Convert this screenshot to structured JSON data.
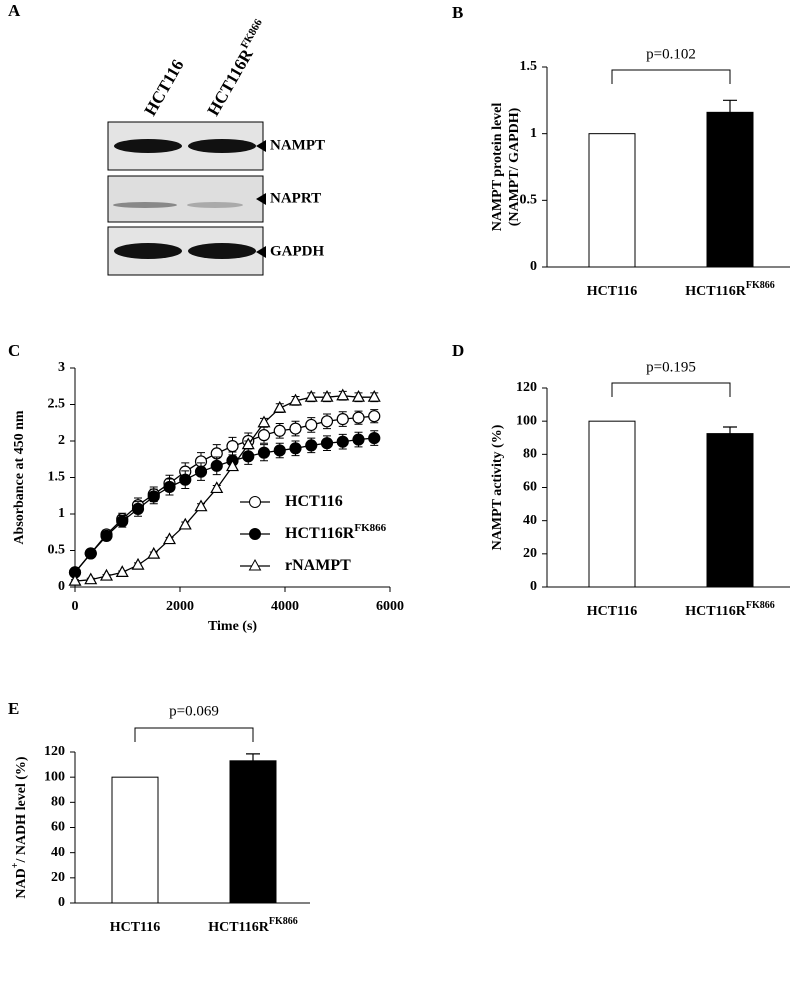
{
  "blot": {
    "panel": "A",
    "lanes": [
      {
        "label": "HCT116"
      },
      {
        "label": "HCT116R",
        "superscript": "FK866"
      }
    ],
    "proteins": [
      "NAMPT",
      "NAPRT",
      "GAPDH"
    ]
  },
  "chart_data": [
    {
      "type": "bar",
      "panel": "B",
      "ylabel": [
        [
          {
            "text": "NAMPT protein level"
          }
        ],
        [
          {
            "text": "(NAMPT/ GAPDH)"
          }
        ]
      ],
      "categories": [
        {
          "label": "HCT116"
        },
        {
          "label": "HCT116R",
          "superscript": "FK866"
        }
      ],
      "values": [
        1,
        1.16
      ],
      "errors": [
        null,
        0.09
      ],
      "colors": [
        "#ffffff",
        "#000000"
      ],
      "ylim": [
        0,
        1.5
      ],
      "yticks": [
        0,
        0.5,
        1,
        1.5
      ],
      "annotation": "p=0.102"
    },
    {
      "type": "line",
      "panel": "C",
      "xlabel": [
        {
          "text": "Time (s)"
        }
      ],
      "ylabel": [
        [
          {
            "text": "Absorbance at 450 nm"
          }
        ]
      ],
      "x": [
        0,
        300,
        600,
        900,
        1200,
        1500,
        1800,
        2100,
        2400,
        2700,
        3000,
        3300,
        3600,
        3900,
        4200,
        4500,
        4800,
        5100,
        5400,
        5700
      ],
      "xlim": [
        0,
        6000
      ],
      "xticks": [
        0,
        2000,
        4000,
        6000
      ],
      "ylim": [
        0,
        3
      ],
      "yticks": [
        0,
        0.5,
        1,
        1.5,
        2,
        2.5,
        3
      ],
      "legend": "right",
      "series": [
        {
          "name": "HCT116",
          "marker": "circle-open",
          "color": "#000000",
          "values": [
            0.2,
            0.46,
            0.72,
            0.93,
            1.12,
            1.27,
            1.42,
            1.58,
            1.72,
            1.83,
            1.93,
            2.0,
            2.08,
            2.14,
            2.17,
            2.22,
            2.27,
            2.3,
            2.32,
            2.34
          ],
          "errors": [
            0.03,
            0.04,
            0.06,
            0.08,
            0.1,
            0.1,
            0.11,
            0.12,
            0.12,
            0.12,
            0.12,
            0.11,
            0.11,
            0.1,
            0.1,
            0.1,
            0.1,
            0.1,
            0.09,
            0.09
          ]
        },
        {
          "name": "HCT116R",
          "superscript": "FK866",
          "marker": "circle-filled",
          "color": "#000000",
          "values": [
            0.2,
            0.46,
            0.7,
            0.9,
            1.07,
            1.24,
            1.37,
            1.47,
            1.58,
            1.66,
            1.73,
            1.79,
            1.84,
            1.87,
            1.9,
            1.94,
            1.97,
            1.99,
            2.02,
            2.04
          ],
          "errors": [
            0.03,
            0.04,
            0.06,
            0.08,
            0.1,
            0.1,
            0.11,
            0.12,
            0.12,
            0.12,
            0.12,
            0.11,
            0.11,
            0.1,
            0.1,
            0.1,
            0.1,
            0.1,
            0.1,
            0.1
          ]
        },
        {
          "name": "rNAMPT",
          "marker": "triangle-open",
          "color": "#000000",
          "values": [
            0.08,
            0.1,
            0.15,
            0.2,
            0.3,
            0.45,
            0.65,
            0.85,
            1.1,
            1.35,
            1.65,
            1.95,
            2.25,
            2.45,
            2.55,
            2.6,
            2.6,
            2.62,
            2.6,
            2.6
          ],
          "errors": [
            0.02,
            0.02,
            0.02,
            0.02,
            0.03,
            0.03,
            0.03,
            0.04,
            0.04,
            0.04,
            0.05,
            0.05,
            0.06,
            0.06,
            0.06,
            0.06,
            0.06,
            0.06,
            0.06,
            0.06
          ]
        }
      ]
    },
    {
      "type": "bar",
      "panel": "D",
      "ylabel": [
        [
          {
            "text": "NAMPT activity (%)"
          }
        ]
      ],
      "categories": [
        {
          "label": "HCT116"
        },
        {
          "label": "HCT116R",
          "superscript": "FK866"
        }
      ],
      "values": [
        100,
        92.5
      ],
      "errors": [
        null,
        4
      ],
      "colors": [
        "#ffffff",
        "#000000"
      ],
      "ylim": [
        0,
        120
      ],
      "yticks": [
        0,
        20,
        40,
        60,
        80,
        100,
        120
      ],
      "annotation": "p=0.195"
    },
    {
      "type": "bar",
      "panel": "E",
      "ylabel": [
        [
          {
            "text": "NAD"
          },
          {
            "text": "+",
            "sup": true
          },
          {
            "text": "/ NADH  level (%)"
          }
        ]
      ],
      "categories": [
        {
          "label": "HCT116"
        },
        {
          "label": "HCT116R",
          "superscript": "FK866"
        }
      ],
      "values": [
        100,
        113
      ],
      "errors": [
        null,
        5.5
      ],
      "colors": [
        "#ffffff",
        "#000000"
      ],
      "ylim": [
        0,
        120
      ],
      "yticks": [
        0,
        20,
        40,
        60,
        80,
        100,
        120
      ],
      "annotation": "p=0.069"
    }
  ]
}
